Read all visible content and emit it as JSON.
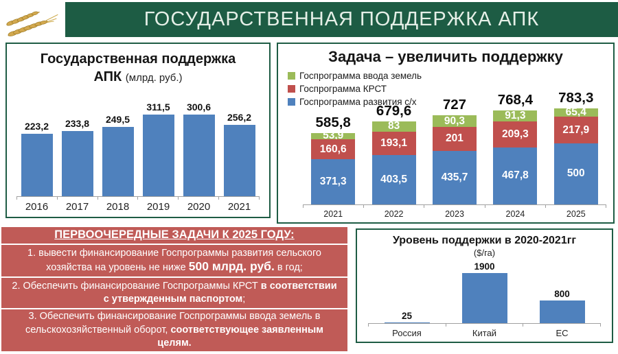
{
  "header": {
    "title": "ГОСУДАРСТВЕННАЯ ПОДДЕРЖКА АПК",
    "logo": "wheat-ears-logo"
  },
  "colors": {
    "header_green": "#1D5C44",
    "panel_border": "#1E5C44",
    "bar_blue": "#4F81BD",
    "bar_red": "#C0504D",
    "bar_green": "#9BBB59",
    "tasks_bg": "#C05B57",
    "axis_gray": "#A0A0A0",
    "title_text": "#E5EFE7"
  },
  "chart_data": [
    {
      "id": "support_apk",
      "type": "bar",
      "title_line1": "Государственная поддержка",
      "title_line2_bold": "АПК",
      "title_line2_unit": "(млрд. руб.)",
      "categories": [
        "2016",
        "2017",
        "2018",
        "2019",
        "2020",
        "2021"
      ],
      "values": [
        223.2,
        233.8,
        249.5,
        311.5,
        300.6,
        256.2
      ],
      "labels": [
        "223,2",
        "233,8",
        "249,5",
        "311,5",
        "300,6",
        "256,2"
      ],
      "bar_color_key": "bar_blue",
      "xlabel": "",
      "ylabel": "",
      "ylim": [
        0,
        340
      ],
      "grid": false,
      "legend_position": "none"
    },
    {
      "id": "increase_support",
      "type": "stacked-bar",
      "title": "Задача – увеличить поддержку",
      "categories": [
        "2021",
        "2022",
        "2023",
        "2024",
        "2025"
      ],
      "legend": [
        {
          "label": "Госпрограмма ввода земель",
          "color_key": "bar_green"
        },
        {
          "label": "Госпрограмма КРСТ",
          "color_key": "bar_red"
        },
        {
          "label": "Госпрограмма развития с/х",
          "color_key": "bar_blue"
        }
      ],
      "series": [
        {
          "name": "Госпрограмма развития с/х",
          "color_key": "bar_blue",
          "values": [
            371.3,
            403.5,
            435.7,
            467.8,
            500
          ],
          "labels": [
            "371,3",
            "403,5",
            "435,7",
            "467,8",
            "500"
          ]
        },
        {
          "name": "Госпрограмма КРСТ",
          "color_key": "bar_red",
          "values": [
            160.6,
            193.1,
            201,
            209.3,
            217.9
          ],
          "labels": [
            "160,6",
            "193,1",
            "201",
            "209,3",
            "217,9"
          ]
        },
        {
          "name": "Госпрограмма ввода земель",
          "color_key": "bar_green",
          "values": [
            53.9,
            83,
            90.3,
            91.3,
            65.4
          ],
          "labels": [
            "53,9",
            "83",
            "90,3",
            "91,3",
            "65,4"
          ]
        }
      ],
      "totals": [
        585.8,
        679.6,
        727,
        768.4,
        783.3
      ],
      "total_labels": [
        "585,8",
        "679,6",
        "727",
        "768,4",
        "783,3"
      ],
      "xlabel": "",
      "ylabel": "",
      "ylim": [
        0,
        1100
      ],
      "grid": false,
      "legend_position": "top-left"
    },
    {
      "id": "support_level",
      "type": "bar",
      "title": "Уровень поддержки в 2020-2021гг",
      "subtitle": "($/га)",
      "categories": [
        "Россия",
        "Китай",
        "ЕС"
      ],
      "values": [
        25,
        1900,
        800
      ],
      "labels": [
        "25",
        "1900",
        "800"
      ],
      "bar_color_key": "bar_blue",
      "xlabel": "",
      "ylabel": "",
      "ylim": [
        0,
        2200
      ],
      "grid": false,
      "legend_position": "none"
    }
  ],
  "tasks": {
    "heading": "ПЕРВООЧЕРЕДНЫЕ ЗАДАЧИ К 2025 ГОДУ:",
    "items": [
      {
        "pre": "1. вывести финансирование Госпрограммы развития сельского хозяйства на уровень не ниже ",
        "bold": "500 млрд. руб.",
        "post": " в год;"
      },
      {
        "pre": "2. Обеспечить финансирование Госпрограммы КРСТ ",
        "bold": "в соответствии с утвержденным паспортом",
        "post": ";"
      },
      {
        "pre": "3. Обеспечить финансирование Госпрограммы ввода земель в сельскохозяйственный оборот, ",
        "bold": "соответствующее заявленным целям.",
        "post": ""
      }
    ]
  }
}
